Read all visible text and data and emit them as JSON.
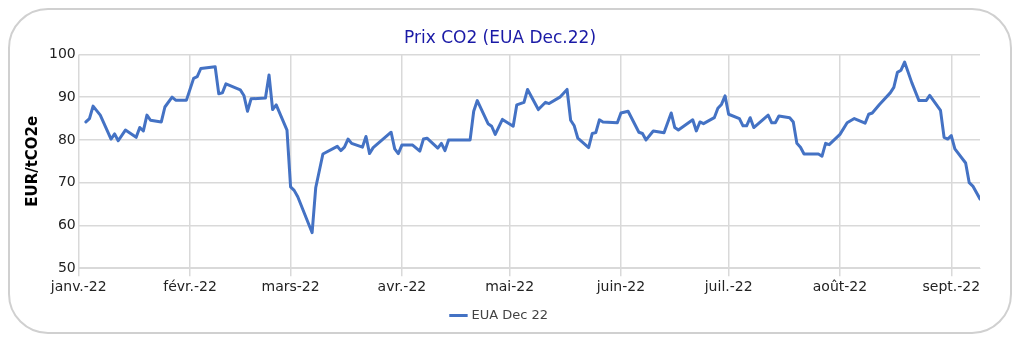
{
  "chart_data": {
    "type": "line",
    "title": "Prix CO2 (EUA Dec.22)",
    "ylabel": "EUR/tCO2e",
    "x": [
      "2022-01-03",
      "2022-01-04",
      "2022-01-05",
      "2022-01-07",
      "2022-01-10",
      "2022-01-11",
      "2022-01-12",
      "2022-01-14",
      "2022-01-17",
      "2022-01-18",
      "2022-01-19",
      "2022-01-20",
      "2022-01-21",
      "2022-01-24",
      "2022-01-25",
      "2022-01-27",
      "2022-01-28",
      "2022-01-31",
      "2022-02-02",
      "2022-02-03",
      "2022-02-04",
      "2022-02-08",
      "2022-02-09",
      "2022-02-10",
      "2022-02-11",
      "2022-02-15",
      "2022-02-16",
      "2022-02-17",
      "2022-02-18",
      "2022-02-22",
      "2022-02-23",
      "2022-02-24",
      "2022-02-25",
      "2022-02-28",
      "2022-03-01",
      "2022-03-02",
      "2022-03-03",
      "2022-03-07",
      "2022-03-08",
      "2022-03-10",
      "2022-03-14",
      "2022-03-15",
      "2022-03-16",
      "2022-03-17",
      "2022-03-18",
      "2022-03-21",
      "2022-03-22",
      "2022-03-23",
      "2022-03-24",
      "2022-03-29",
      "2022-03-30",
      "2022-03-31",
      "2022-04-01",
      "2022-04-04",
      "2022-04-06",
      "2022-04-07",
      "2022-04-08",
      "2022-04-11",
      "2022-04-12",
      "2022-04-13",
      "2022-04-14",
      "2022-04-20",
      "2022-04-21",
      "2022-04-22",
      "2022-04-25",
      "2022-04-26",
      "2022-04-27",
      "2022-04-29",
      "2022-05-02",
      "2022-05-03",
      "2022-05-05",
      "2022-05-06",
      "2022-05-09",
      "2022-05-11",
      "2022-05-12",
      "2022-05-15",
      "2022-05-17",
      "2022-05-18",
      "2022-05-19",
      "2022-05-20",
      "2022-05-23",
      "2022-05-24",
      "2022-05-25",
      "2022-05-26",
      "2022-05-27",
      "2022-05-31",
      "2022-06-01",
      "2022-06-03",
      "2022-06-06",
      "2022-06-07",
      "2022-06-08",
      "2022-06-10",
      "2022-06-13",
      "2022-06-15",
      "2022-06-16",
      "2022-06-17",
      "2022-06-21",
      "2022-06-22",
      "2022-06-23",
      "2022-06-24",
      "2022-06-27",
      "2022-06-28",
      "2022-06-29",
      "2022-06-30",
      "2022-07-01",
      "2022-07-04",
      "2022-07-05",
      "2022-07-06",
      "2022-07-07",
      "2022-07-08",
      "2022-07-12",
      "2022-07-13",
      "2022-07-14",
      "2022-07-15",
      "2022-07-18",
      "2022-07-19",
      "2022-07-20",
      "2022-07-21",
      "2022-07-22",
      "2022-07-26",
      "2022-07-27",
      "2022-07-28",
      "2022-07-29",
      "2022-08-01",
      "2022-08-03",
      "2022-08-05",
      "2022-08-08",
      "2022-08-09",
      "2022-08-10",
      "2022-08-12",
      "2022-08-15",
      "2022-08-16",
      "2022-08-17",
      "2022-08-18",
      "2022-08-19",
      "2022-08-21",
      "2022-08-23",
      "2022-08-25",
      "2022-08-26",
      "2022-08-29",
      "2022-08-30",
      "2022-08-31",
      "2022-09-01",
      "2022-09-02",
      "2022-09-05",
      "2022-09-06",
      "2022-09-07",
      "2022-09-09"
    ],
    "series": [
      {
        "name": "EUA Dec 22",
        "color": "#4472c4",
        "values": [
          84.2,
          85,
          87.9,
          85.8,
          80.2,
          81.4,
          79.8,
          82.3,
          80.6,
          82.9,
          82.1,
          85.8,
          84.6,
          84.2,
          87.7,
          90,
          89.3,
          89.3,
          94.4,
          94.8,
          96.7,
          97.1,
          90.8,
          91,
          93.1,
          91.7,
          90.4,
          86.7,
          89.6,
          89.8,
          95.2,
          87.1,
          88.2,
          82.3,
          69,
          68.2,
          66.7,
          58.3,
          68.8,
          76.7,
          78.5,
          77.5,
          78.3,
          80.2,
          79.2,
          78.3,
          80.8,
          76.8,
          78.2,
          81.8,
          77.9,
          76.8,
          78.8,
          78.8,
          77.4,
          80.2,
          80.4,
          78.1,
          79.2,
          77.5,
          80,
          80,
          86.7,
          89.2,
          83.8,
          83.2,
          81.3,
          84.8,
          83.2,
          88.2,
          88.8,
          91.8,
          87.1,
          88.8,
          88.5,
          90,
          91.8,
          84.6,
          83.3,
          80.4,
          78.2,
          81.5,
          81.7,
          84.7,
          84.2,
          84,
          86.3,
          86.7,
          81.8,
          81.5,
          80,
          82.1,
          81.7,
          86.3,
          82.9,
          82.3,
          84.7,
          82.1,
          84.2,
          83.8,
          85.2,
          87.4,
          88.3,
          90.3,
          86,
          85,
          83.3,
          83.3,
          85.2,
          82.9,
          85.8,
          84,
          84,
          85.6,
          85.2,
          84.2,
          79.2,
          78.3,
          76.7,
          76.7,
          76.2,
          79.2,
          78.9,
          81.3,
          84,
          85,
          83.9,
          86,
          86.3,
          88.3,
          91,
          92.3,
          95.8,
          96.3,
          98.2,
          93.4,
          89.2,
          89.2,
          90.4,
          86.9,
          80.6,
          80.2,
          81,
          77.9,
          74.6,
          70,
          69.2,
          66.2
        ]
      }
    ],
    "xlim": [
      "2022-01-01",
      "2022-09-09"
    ],
    "xticks": [
      {
        "value": "2022-01-01",
        "label": "janv.-22"
      },
      {
        "value": "2022-02-01",
        "label": "févr.-22"
      },
      {
        "value": "2022-03-01",
        "label": "mars-22"
      },
      {
        "value": "2022-04-01",
        "label": "avr.-22"
      },
      {
        "value": "2022-05-01",
        "label": "mai-22"
      },
      {
        "value": "2022-06-01",
        "label": "juin-22"
      },
      {
        "value": "2022-07-01",
        "label": "juil.-22"
      },
      {
        "value": "2022-08-01",
        "label": "août-22"
      },
      {
        "value": "2022-09-01",
        "label": "sept.-22"
      }
    ],
    "ylim": [
      50,
      100
    ],
    "yticks": [
      50,
      60,
      70,
      80,
      90,
      100
    ],
    "grid": true,
    "legend": "bottom",
    "marker": "none",
    "line_style": "solid"
  }
}
